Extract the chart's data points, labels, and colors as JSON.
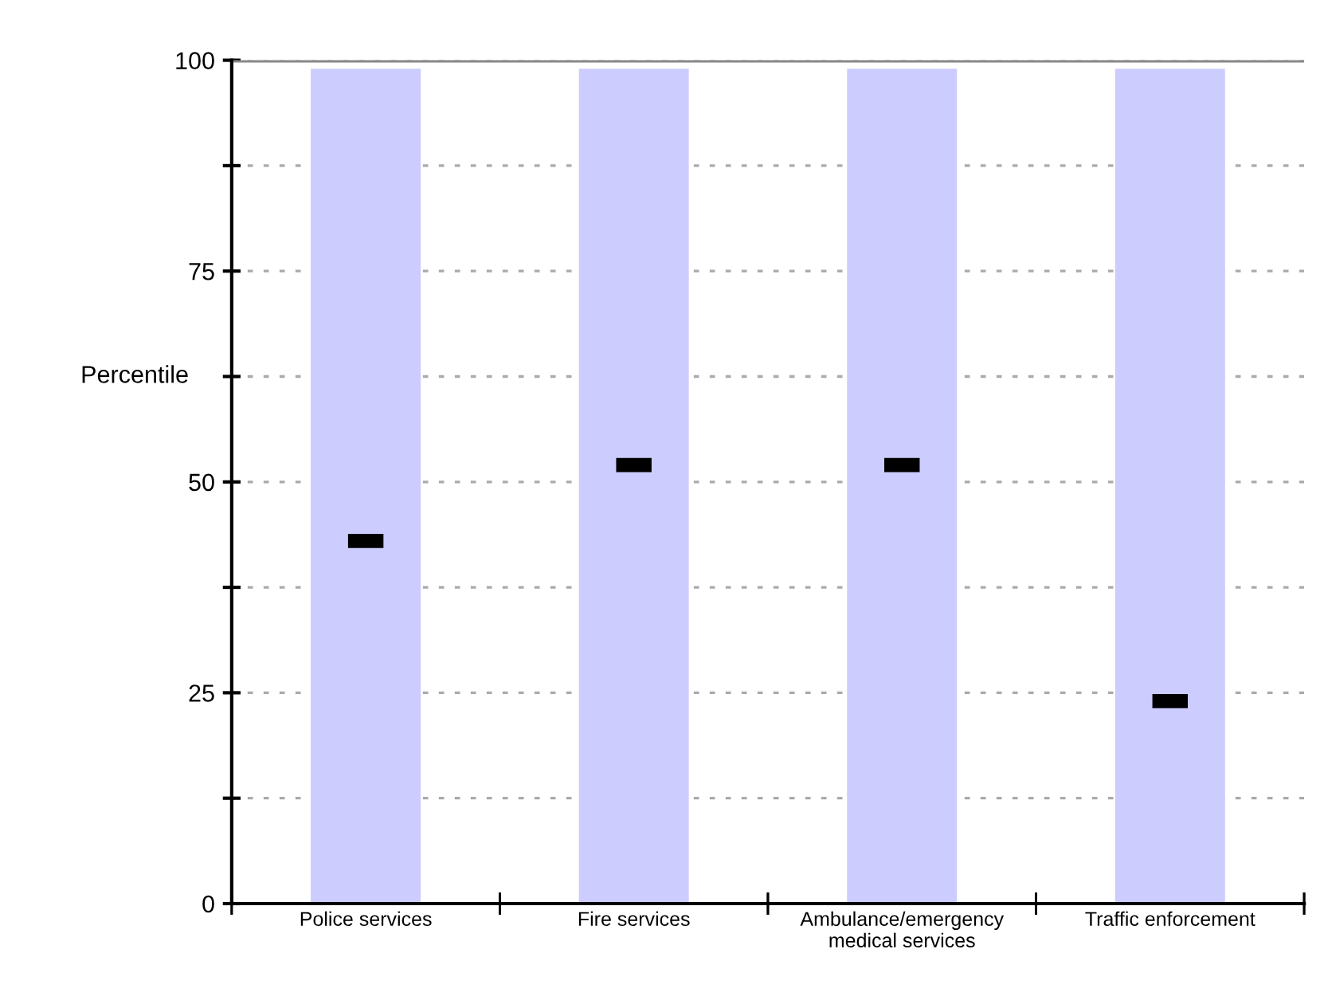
{
  "chart_data": {
    "type": "bar",
    "ylabel": "Percentile",
    "categories": [
      "Police services",
      "Fire services",
      "Ambulance/emergency\nmedical services",
      "Traffic enforcement"
    ],
    "series": [
      {
        "type": "bar",
        "color": "#ccccff",
        "values": [
          99,
          99,
          99,
          99
        ]
      },
      {
        "type": "scatter",
        "color": "#000000",
        "x": [
          "Police services",
          "Fire services",
          "Ambulance/emergency\nmedical services",
          "Traffic enforcement"
        ],
        "values": [
          43,
          52,
          52,
          24
        ]
      }
    ],
    "ylim": [
      0,
      100
    ],
    "yticks": [
      0,
      {
        "value": 12.5,
        "label": null
      },
      25,
      {
        "value": 37.5,
        "label": null
      },
      50,
      {
        "value": 62.5,
        "label": null
      },
      75,
      {
        "value": 87.5,
        "label": null
      },
      100
    ],
    "grid": "y"
  }
}
